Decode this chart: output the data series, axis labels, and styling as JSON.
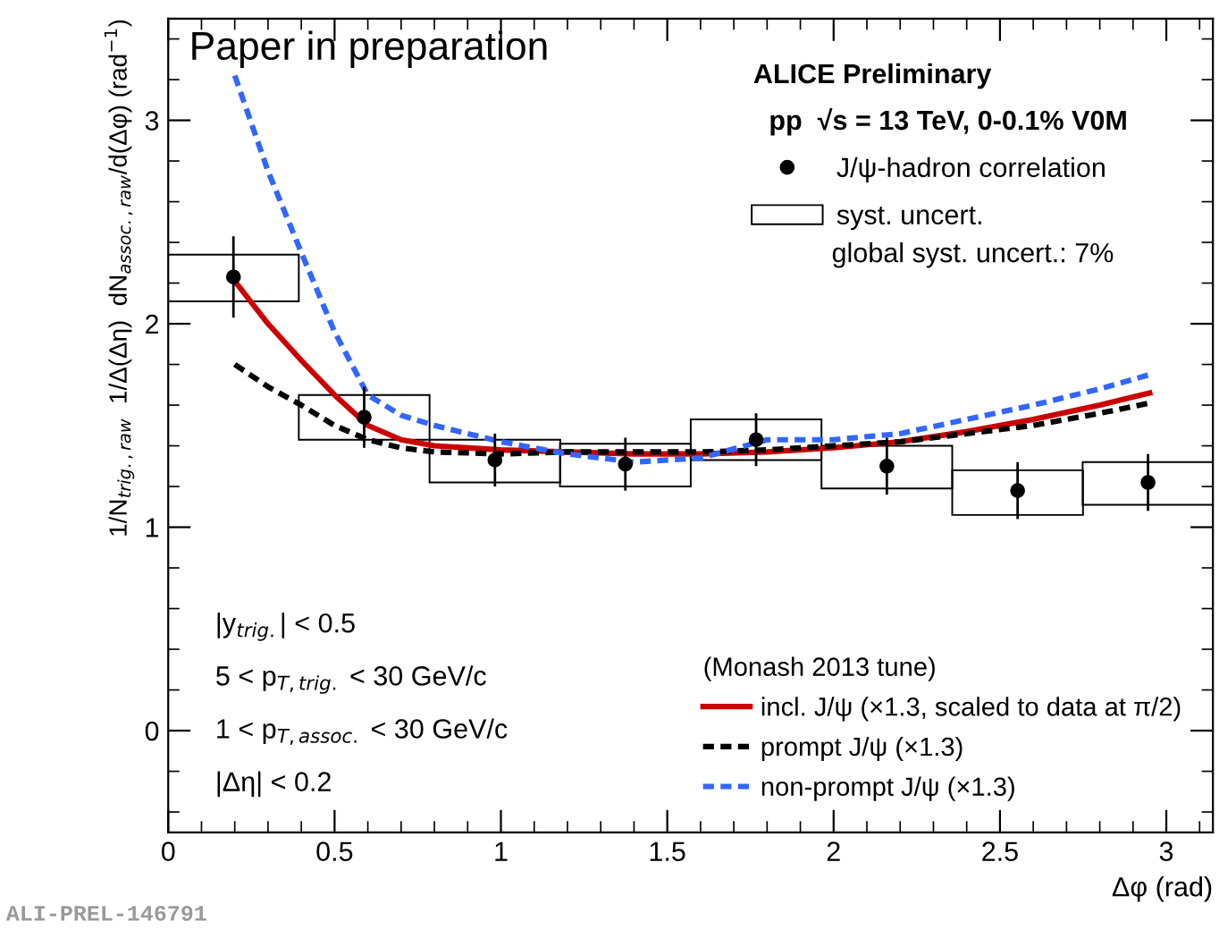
{
  "chart_data": {
    "type": "scatter",
    "xlabel": "Δφ (rad)",
    "ylabel": "1/N$_{trig.,raw}$  1/Δ(Δη)  dN$_{assoc.,raw}$/d(Δφ) (rad$^{−1}$)",
    "legend_title": "(Monash 2013 tune)",
    "xlim": [
      0,
      3.14
    ],
    "ylim": [
      -0.5,
      3.5
    ],
    "xticks": [
      0,
      0.5,
      1,
      1.5,
      2,
      2.5,
      3
    ],
    "yticks": [
      0,
      1,
      2,
      3
    ],
    "legend": "bottom right",
    "series": [
      {
        "name": "J/ψ-hadron correlation",
        "marker": "circle",
        "color": "#000000",
        "x": [
          0.196,
          0.589,
          0.982,
          1.374,
          1.767,
          2.16,
          2.553,
          2.945
        ],
        "values": [
          2.23,
          1.54,
          1.33,
          1.31,
          1.43,
          1.3,
          1.18,
          1.22
        ],
        "errors": [
          0.2,
          0.15,
          0.13,
          0.13,
          0.13,
          0.14,
          0.14,
          0.14
        ]
      },
      {
        "name": "syst. uncert.",
        "type": "bar",
        "color": "#000000",
        "x": [
          0.196,
          0.589,
          0.982,
          1.374,
          1.767,
          2.16,
          2.553,
          2.945
        ],
        "base": [
          2.11,
          1.43,
          1.22,
          1.2,
          1.33,
          1.19,
          1.06,
          1.11
        ],
        "values": [
          0.23,
          0.22,
          0.21,
          0.21,
          0.2,
          0.21,
          0.22,
          0.21
        ]
      },
      {
        "name": "incl. J/ψ (×1.3, scaled to data at π/2)",
        "type": "line",
        "line_style": "solid",
        "color": "#cc0000",
        "x": [
          0.2,
          0.3,
          0.4,
          0.5,
          0.6,
          0.7,
          0.8,
          1.0,
          1.2,
          1.4,
          1.6,
          1.8,
          2.0,
          2.2,
          2.4,
          2.6,
          2.8,
          2.95
        ],
        "values": [
          2.21,
          2.0,
          1.82,
          1.65,
          1.5,
          1.43,
          1.4,
          1.38,
          1.37,
          1.36,
          1.36,
          1.37,
          1.39,
          1.42,
          1.47,
          1.53,
          1.6,
          1.66
        ]
      },
      {
        "name": "prompt J/ψ (×1.3)",
        "type": "line",
        "line_style": "dashed",
        "color": "#000000",
        "x": [
          0.2,
          0.3,
          0.4,
          0.5,
          0.6,
          0.7,
          0.8,
          1.0,
          1.2,
          1.4,
          1.6,
          1.8,
          2.0,
          2.2,
          2.4,
          2.6,
          2.8,
          2.95
        ],
        "values": [
          1.8,
          1.69,
          1.6,
          1.5,
          1.43,
          1.39,
          1.37,
          1.36,
          1.37,
          1.37,
          1.37,
          1.38,
          1.4,
          1.42,
          1.46,
          1.5,
          1.56,
          1.61
        ]
      },
      {
        "name": "non-prompt J/ψ (×1.3)",
        "type": "line",
        "line_style": "dashed",
        "color": "#3366ff",
        "x": [
          0.2,
          0.3,
          0.4,
          0.5,
          0.6,
          0.7,
          0.8,
          1.0,
          1.2,
          1.4,
          1.6,
          1.8,
          2.0,
          2.2,
          2.4,
          2.6,
          2.8,
          2.95
        ],
        "values": [
          3.22,
          2.75,
          2.35,
          1.96,
          1.65,
          1.55,
          1.5,
          1.42,
          1.36,
          1.32,
          1.34,
          1.43,
          1.43,
          1.46,
          1.53,
          1.6,
          1.68,
          1.75
        ]
      }
    ],
    "annotations": [
      "Paper in preparation",
      "ALICE Preliminary",
      "pp  √s = 13 TeV, 0-0.1% V0M",
      "global syst. uncert.: 7%",
      "|y$_{trig.}$| < 0.5",
      "5 < p$_{T,trig.}$ < 30 GeV/c",
      "1 < p$_{T,assoc.}$ < 30 GeV/c",
      "|Δη| < 0.2",
      "ALI-PREL-146791"
    ]
  }
}
